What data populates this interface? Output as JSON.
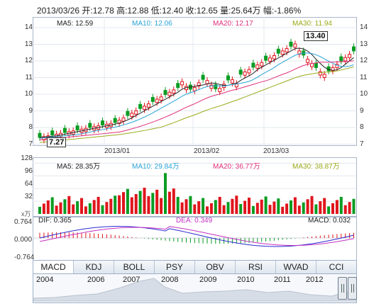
{
  "header": {
    "text": "2013/03/26 开:12.78 高:12.88 低:12.40 收:12.65 量:25.64万 幅:-1.86%"
  },
  "main_legend": {
    "ma5": "MA5: 12.59",
    "ma10": "MA10: 12.06",
    "ma20": "MA20: 12.17",
    "ma30": "MA30: 11.94"
  },
  "price_axis": [
    "14",
    "13",
    "12",
    "11",
    "10",
    "9",
    "8",
    "7"
  ],
  "price_labels": {
    "high": "13.40",
    "low": "7.27"
  },
  "date_labels": [
    "2013/01",
    "2013/02",
    "2013/03"
  ],
  "vol_legend": {
    "ma5": "MA5: 28.35万",
    "ma10": "MA10: 29.84万",
    "ma20": "MA20: 36.77万",
    "ma30": "MA30: 38.87万"
  },
  "vol_axis": [
    "128",
    "96",
    "64",
    "32"
  ],
  "vol_unit": "x万",
  "macd_legend": {
    "dif": "DIF: 0.365",
    "dea": "DEA: 0.349",
    "macd": "MACD: 0.032"
  },
  "macd_axis": [
    "0.764",
    "0.000",
    "-0.764"
  ],
  "tabs": [
    "MACD",
    "KDJ",
    "BOLL",
    "PSY",
    "OBV",
    "RSI",
    "WVAD",
    "CCI"
  ],
  "active_tab": "MACD",
  "nav_years": [
    "2004",
    "2006",
    "2007",
    "2008",
    "2009",
    "2010",
    "2011",
    "2012"
  ],
  "colors": {
    "up": "#e0151c",
    "down": "#0a9c23",
    "ma5": "#222222",
    "ma10": "#29a3d6",
    "ma20": "#e0307a",
    "ma30": "#9aaa1a"
  }
}
